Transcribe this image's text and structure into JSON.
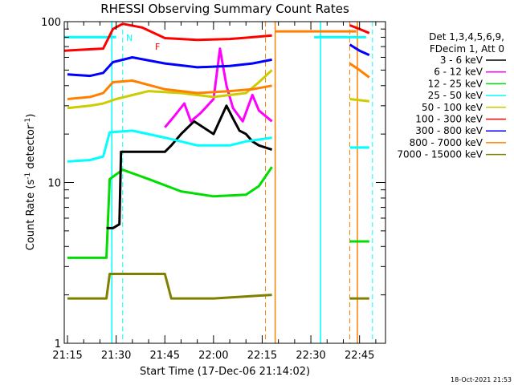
{
  "chart_data": {
    "type": "line",
    "title": "RHESSI Observing Summary Count Rates",
    "xlabel": "Start Time (17-Dec-06 21:14:02)",
    "ylabel_main": "Count Rate (s",
    "ylabel_exp1": "-1",
    "ylabel_mid": " detector",
    "ylabel_exp2": "-1",
    "ylabel_end": ")",
    "y_scale": "log",
    "ylim": [
      1,
      100
    ],
    "xlim": [
      "21:14",
      "22:53"
    ],
    "x_ticks": [
      "21:15",
      "21:30",
      "21:45",
      "22:00",
      "22:15",
      "22:30",
      "22:45"
    ],
    "y_ticks": [
      "1",
      "10",
      "100"
    ],
    "legend_header": [
      "Det 1,3,4,5,6,9,",
      "FDecim 1, Att 0"
    ],
    "legend_placement": "right",
    "annotations": [
      "N",
      "F"
    ],
    "footer_date": "18-Oct-2021 21:53",
    "night_bounds": [
      "21:28:40",
      "22:33"
    ],
    "saa_bounds": [
      "22:19",
      "22:44:20"
    ],
    "dash_markers": [
      "21:32",
      "22:16",
      "22:42",
      "22:49"
    ],
    "series": [
      {
        "name": "3 - 6 keV",
        "color": "#000000",
        "x": [
          "21:27",
          "21:29",
          "21:31",
          "21:31:30",
          "21:45",
          "21:47",
          "21:50",
          "21:54",
          "22:00",
          "22:04",
          "22:06",
          "22:08",
          "22:10",
          "22:12",
          "22:14",
          "22:18"
        ],
        "y": [
          5.2,
          5.2,
          5.5,
          15.5,
          15.5,
          17,
          20,
          24,
          20,
          30,
          25,
          21,
          20,
          18,
          17,
          16
        ]
      },
      {
        "name": "6 - 12 keV",
        "color": "#ff00ff",
        "x": [
          "21:45",
          "21:48",
          "21:51",
          "21:53",
          "21:56",
          "22:00",
          "22:02",
          "22:04",
          "22:06",
          "22:09",
          "22:12",
          "22:14",
          "22:18"
        ],
        "y": [
          22,
          26,
          31,
          24,
          27,
          33,
          68,
          40,
          29,
          24,
          35,
          28,
          24
        ]
      },
      {
        "name": "12 - 25 keV",
        "color": "#00dd00",
        "x": [
          "21:15",
          "21:27",
          "21:28",
          "21:32",
          "21:40",
          "21:50",
          "22:00",
          "22:10",
          "22:14",
          "22:18"
        ],
        "y": [
          3.4,
          3.4,
          10.5,
          12,
          10.5,
          8.8,
          8.2,
          8.4,
          9.5,
          12.5
        ],
        "x2": [
          "22:42",
          "22:48"
        ],
        "y2": [
          4.3,
          4.3
        ]
      },
      {
        "name": "25 - 50 keV",
        "color": "#00ffff",
        "x": [
          "21:15",
          "21:22",
          "21:26",
          "21:28",
          "21:35",
          "21:45",
          "21:55",
          "22:05",
          "22:10",
          "22:18"
        ],
        "y": [
          13.5,
          13.8,
          14.5,
          20.5,
          21,
          19,
          17,
          17,
          18,
          19
        ],
        "x2": [
          "22:42",
          "22:48"
        ],
        "y2": [
          16.5,
          16.5
        ],
        "x3": [
          "21:14",
          "21:30"
        ],
        "y3": [
          80,
          80
        ],
        "x4": [
          "22:31",
          "22:47"
        ],
        "y4": [
          80,
          80
        ]
      },
      {
        "name": "50 - 100 keV",
        "color": "#cccc00",
        "x": [
          "21:15",
          "21:22",
          "21:26",
          "21:30",
          "21:40",
          "21:50",
          "22:00",
          "22:10",
          "22:14",
          "22:18"
        ],
        "y": [
          29,
          30,
          31,
          33,
          37,
          36,
          34,
          36,
          42,
          50
        ],
        "x2": [
          "22:42",
          "22:48"
        ],
        "y2": [
          33,
          32
        ]
      },
      {
        "name": "100 - 300 keV",
        "color": "#ff0000",
        "x": [
          "21:14",
          "21:20",
          "21:26",
          "21:29",
          "21:32",
          "21:38",
          "21:45",
          "21:55",
          "22:05",
          "22:12",
          "22:18"
        ],
        "y": [
          66,
          67,
          68,
          90,
          97,
          92,
          79,
          77,
          78,
          80,
          82
        ],
        "x2": [
          "22:42",
          "22:45",
          "22:48"
        ],
        "y2": [
          95,
          90,
          85
        ]
      },
      {
        "name": "300 - 800 keV",
        "color": "#0000ff",
        "x": [
          "21:15",
          "21:22",
          "21:26",
          "21:29",
          "21:35",
          "21:45",
          "21:55",
          "22:05",
          "22:12",
          "22:18"
        ],
        "y": [
          47,
          46,
          48,
          56,
          60,
          55,
          52,
          53,
          55,
          58
        ],
        "x2": [
          "22:42",
          "22:45",
          "22:48"
        ],
        "y2": [
          72,
          66,
          62
        ]
      },
      {
        "name": "800 - 7000 keV",
        "color": "#ff8000",
        "x": [
          "21:15",
          "21:22",
          "21:26",
          "21:29",
          "21:35",
          "21:45",
          "21:55",
          "22:05",
          "22:12",
          "22:18"
        ],
        "y": [
          33,
          34,
          36,
          42,
          43,
          38,
          36,
          37,
          38,
          40
        ],
        "x2": [
          "22:19",
          "22:44"
        ],
        "y2": [
          87,
          87
        ],
        "x3": [
          "22:42",
          "22:45",
          "22:48"
        ],
        "y3": [
          55,
          50,
          45
        ]
      },
      {
        "name": "7000 - 15000 keV",
        "color": "#808000",
        "x": [
          "21:15",
          "21:27",
          "21:28",
          "21:45",
          "21:47",
          "22:00",
          "22:18"
        ],
        "y": [
          1.9,
          1.9,
          2.7,
          2.7,
          1.9,
          1.9,
          2.0
        ],
        "x2": [
          "22:42",
          "22:48"
        ],
        "y2": [
          1.9,
          1.9
        ]
      }
    ]
  }
}
